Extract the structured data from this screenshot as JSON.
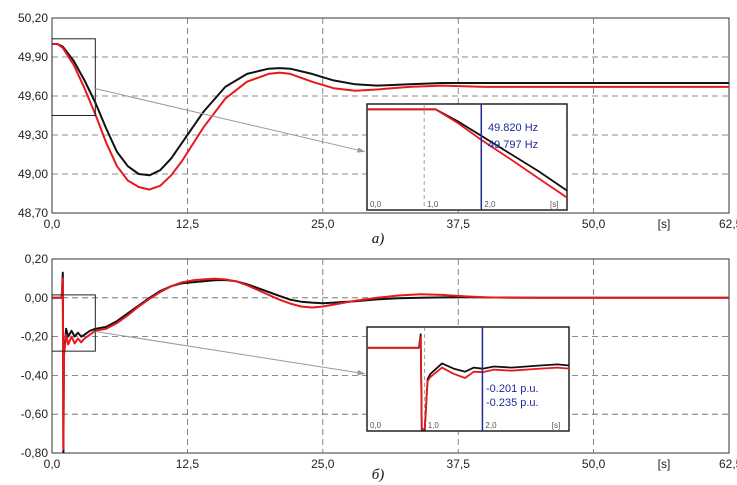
{
  "chart_data": [
    {
      "type": "line",
      "caption": "а)",
      "x_ticks": [
        "0,0",
        "12,5",
        "25,0",
        "37,5",
        "50,0",
        "[s]",
        "62,5"
      ],
      "y_ticks": [
        "48,70",
        "49,00",
        "49,30",
        "49,60",
        "49,90",
        "50,20"
      ],
      "xlim": [
        0,
        62.5
      ],
      "ylim": [
        48.7,
        50.2
      ],
      "grid": true,
      "series": [
        {
          "color": "#111111",
          "x": [
            0,
            0.5,
            1,
            2,
            3,
            4,
            5,
            6,
            7,
            8,
            9,
            10,
            11,
            12,
            14,
            16,
            18,
            20,
            21,
            22,
            24,
            26,
            28,
            30,
            33,
            36,
            40,
            45,
            50,
            55,
            62.5
          ],
          "values": [
            50.0,
            50.0,
            49.98,
            49.87,
            49.72,
            49.55,
            49.35,
            49.17,
            49.06,
            49.0,
            48.99,
            49.03,
            49.12,
            49.24,
            49.48,
            49.67,
            49.77,
            49.81,
            49.815,
            49.81,
            49.77,
            49.72,
            49.69,
            49.68,
            49.69,
            49.7,
            49.7,
            49.7,
            49.7,
            49.7,
            49.7
          ]
        },
        {
          "color": "#e8191c",
          "x": [
            0,
            0.5,
            1,
            2,
            3,
            4,
            5,
            6,
            7,
            8,
            9,
            10,
            11,
            12,
            14,
            16,
            18,
            20,
            21,
            22,
            24,
            26,
            28,
            30,
            33,
            36,
            40,
            45,
            50,
            55,
            62.5
          ],
          "values": [
            50.0,
            50.0,
            49.97,
            49.84,
            49.66,
            49.46,
            49.24,
            49.06,
            48.95,
            48.9,
            48.88,
            48.91,
            48.99,
            49.1,
            49.36,
            49.58,
            49.71,
            49.77,
            49.78,
            49.77,
            49.71,
            49.66,
            49.64,
            49.65,
            49.67,
            49.68,
            49.67,
            49.67,
            49.67,
            49.67,
            49.67
          ]
        }
      ],
      "inset": {
        "x_ticks": [
          "0,0",
          "1,0",
          "2,0",
          "[s]"
        ],
        "xlim": [
          0,
          3.5
        ],
        "ylim": [
          49.4,
          50.0
        ],
        "cursor_x": 2.0,
        "annotations": [
          "49.820 Hz",
          "49.797 Hz"
        ],
        "series": [
          {
            "color": "#111111",
            "x": [
              0,
              1.2,
              1.6,
              2.0,
              2.5,
              3.0,
              3.5
            ],
            "values": [
              49.97,
              49.97,
              49.9,
              49.82,
              49.72,
              49.62,
              49.51
            ]
          },
          {
            "color": "#e8191c",
            "x": [
              0,
              1.2,
              1.6,
              2.0,
              2.5,
              3.0,
              3.5
            ],
            "values": [
              49.97,
              49.97,
              49.89,
              49.797,
              49.69,
              49.58,
              49.47
            ]
          }
        ]
      }
    },
    {
      "type": "line",
      "caption": "б)",
      "x_ticks": [
        "0,0",
        "12,5",
        "25,0",
        "37,5",
        "50,0",
        "[s]",
        "62,5"
      ],
      "y_ticks": [
        "-0,80",
        "-0,60",
        "-0,40",
        "-0,20",
        "0,00",
        "0,20"
      ],
      "xlim": [
        0,
        62.5
      ],
      "ylim": [
        -0.8,
        0.2
      ],
      "grid": true,
      "series": [
        {
          "color": "#111111",
          "x": [
            0,
            0.9,
            1.0,
            1.05,
            1.1,
            1.2,
            1.3,
            1.5,
            1.8,
            2.1,
            2.4,
            2.7,
            3.0,
            3.5,
            4.0,
            5,
            6,
            7,
            8,
            9,
            10,
            11,
            12,
            13,
            14,
            15,
            16,
            17,
            18,
            19,
            20,
            21,
            22,
            23,
            24,
            25,
            26,
            28,
            30,
            32,
            34,
            36,
            38,
            40,
            45,
            50,
            55,
            62.5
          ],
          "values": [
            0.0,
            0.0,
            0.13,
            -0.8,
            -0.28,
            -0.23,
            -0.16,
            -0.2,
            -0.17,
            -0.2,
            -0.18,
            -0.2,
            -0.19,
            -0.17,
            -0.16,
            -0.15,
            -0.12,
            -0.08,
            -0.04,
            0.0,
            0.035,
            0.06,
            0.075,
            0.08,
            0.085,
            0.09,
            0.092,
            0.085,
            0.07,
            0.05,
            0.03,
            0.01,
            -0.01,
            -0.02,
            -0.025,
            -0.028,
            -0.025,
            -0.018,
            -0.008,
            -0.002,
            0.0,
            0.002,
            0.003,
            0.002,
            0.0,
            0.0,
            0.0,
            0.0
          ]
        },
        {
          "color": "#e8191c",
          "x": [
            0,
            0.9,
            1.0,
            1.05,
            1.1,
            1.2,
            1.3,
            1.5,
            1.8,
            2.1,
            2.4,
            2.7,
            3.0,
            3.5,
            4.0,
            5,
            6,
            7,
            8,
            9,
            10,
            11,
            12,
            13,
            14,
            15,
            16,
            17,
            18,
            19,
            20,
            21,
            22,
            23,
            24,
            25,
            26,
            28,
            30,
            32,
            34,
            36,
            38,
            40,
            45,
            50,
            55,
            62.5
          ],
          "values": [
            0.0,
            0.0,
            0.1,
            -0.78,
            -0.3,
            -0.25,
            -0.19,
            -0.24,
            -0.2,
            -0.235,
            -0.21,
            -0.23,
            -0.21,
            -0.19,
            -0.17,
            -0.16,
            -0.13,
            -0.09,
            -0.045,
            -0.005,
            0.03,
            0.06,
            0.08,
            0.09,
            0.095,
            0.098,
            0.095,
            0.085,
            0.065,
            0.04,
            0.015,
            -0.01,
            -0.03,
            -0.045,
            -0.05,
            -0.045,
            -0.035,
            -0.015,
            0.0,
            0.012,
            0.018,
            0.015,
            0.008,
            0.002,
            0.0,
            0.0,
            0.0,
            0.0
          ]
        }
      ],
      "inset": {
        "x_ticks": [
          "0,0",
          "1,0",
          "2,0",
          "[s]"
        ],
        "xlim": [
          0,
          3.5
        ],
        "ylim": [
          -0.8,
          0.2
        ],
        "cursor_x": 2.0,
        "annotations": [
          "-0.201 p.u.",
          "-0.235 p.u."
        ],
        "series": [
          {
            "color": "#111111",
            "x": [
              0,
              0.9,
              0.93,
              0.95,
              1.0,
              1.05,
              1.1,
              1.3,
              1.5,
              1.7,
              1.85,
              2.0,
              2.2,
              2.5,
              3.0,
              3.3,
              3.5
            ],
            "values": [
              0.0,
              0.0,
              0.13,
              -0.8,
              -0.8,
              -0.3,
              -0.25,
              -0.15,
              -0.2,
              -0.23,
              -0.19,
              -0.201,
              -0.18,
              -0.19,
              -0.17,
              -0.16,
              -0.17
            ]
          },
          {
            "color": "#e8191c",
            "x": [
              0,
              0.9,
              0.93,
              0.95,
              1.0,
              1.05,
              1.1,
              1.3,
              1.5,
              1.7,
              1.85,
              2.0,
              2.2,
              2.5,
              3.0,
              3.3,
              3.5
            ],
            "values": [
              0.0,
              0.0,
              0.1,
              -0.78,
              -0.78,
              -0.32,
              -0.28,
              -0.19,
              -0.25,
              -0.29,
              -0.23,
              -0.235,
              -0.21,
              -0.22,
              -0.2,
              -0.19,
              -0.2
            ]
          }
        ]
      }
    }
  ]
}
